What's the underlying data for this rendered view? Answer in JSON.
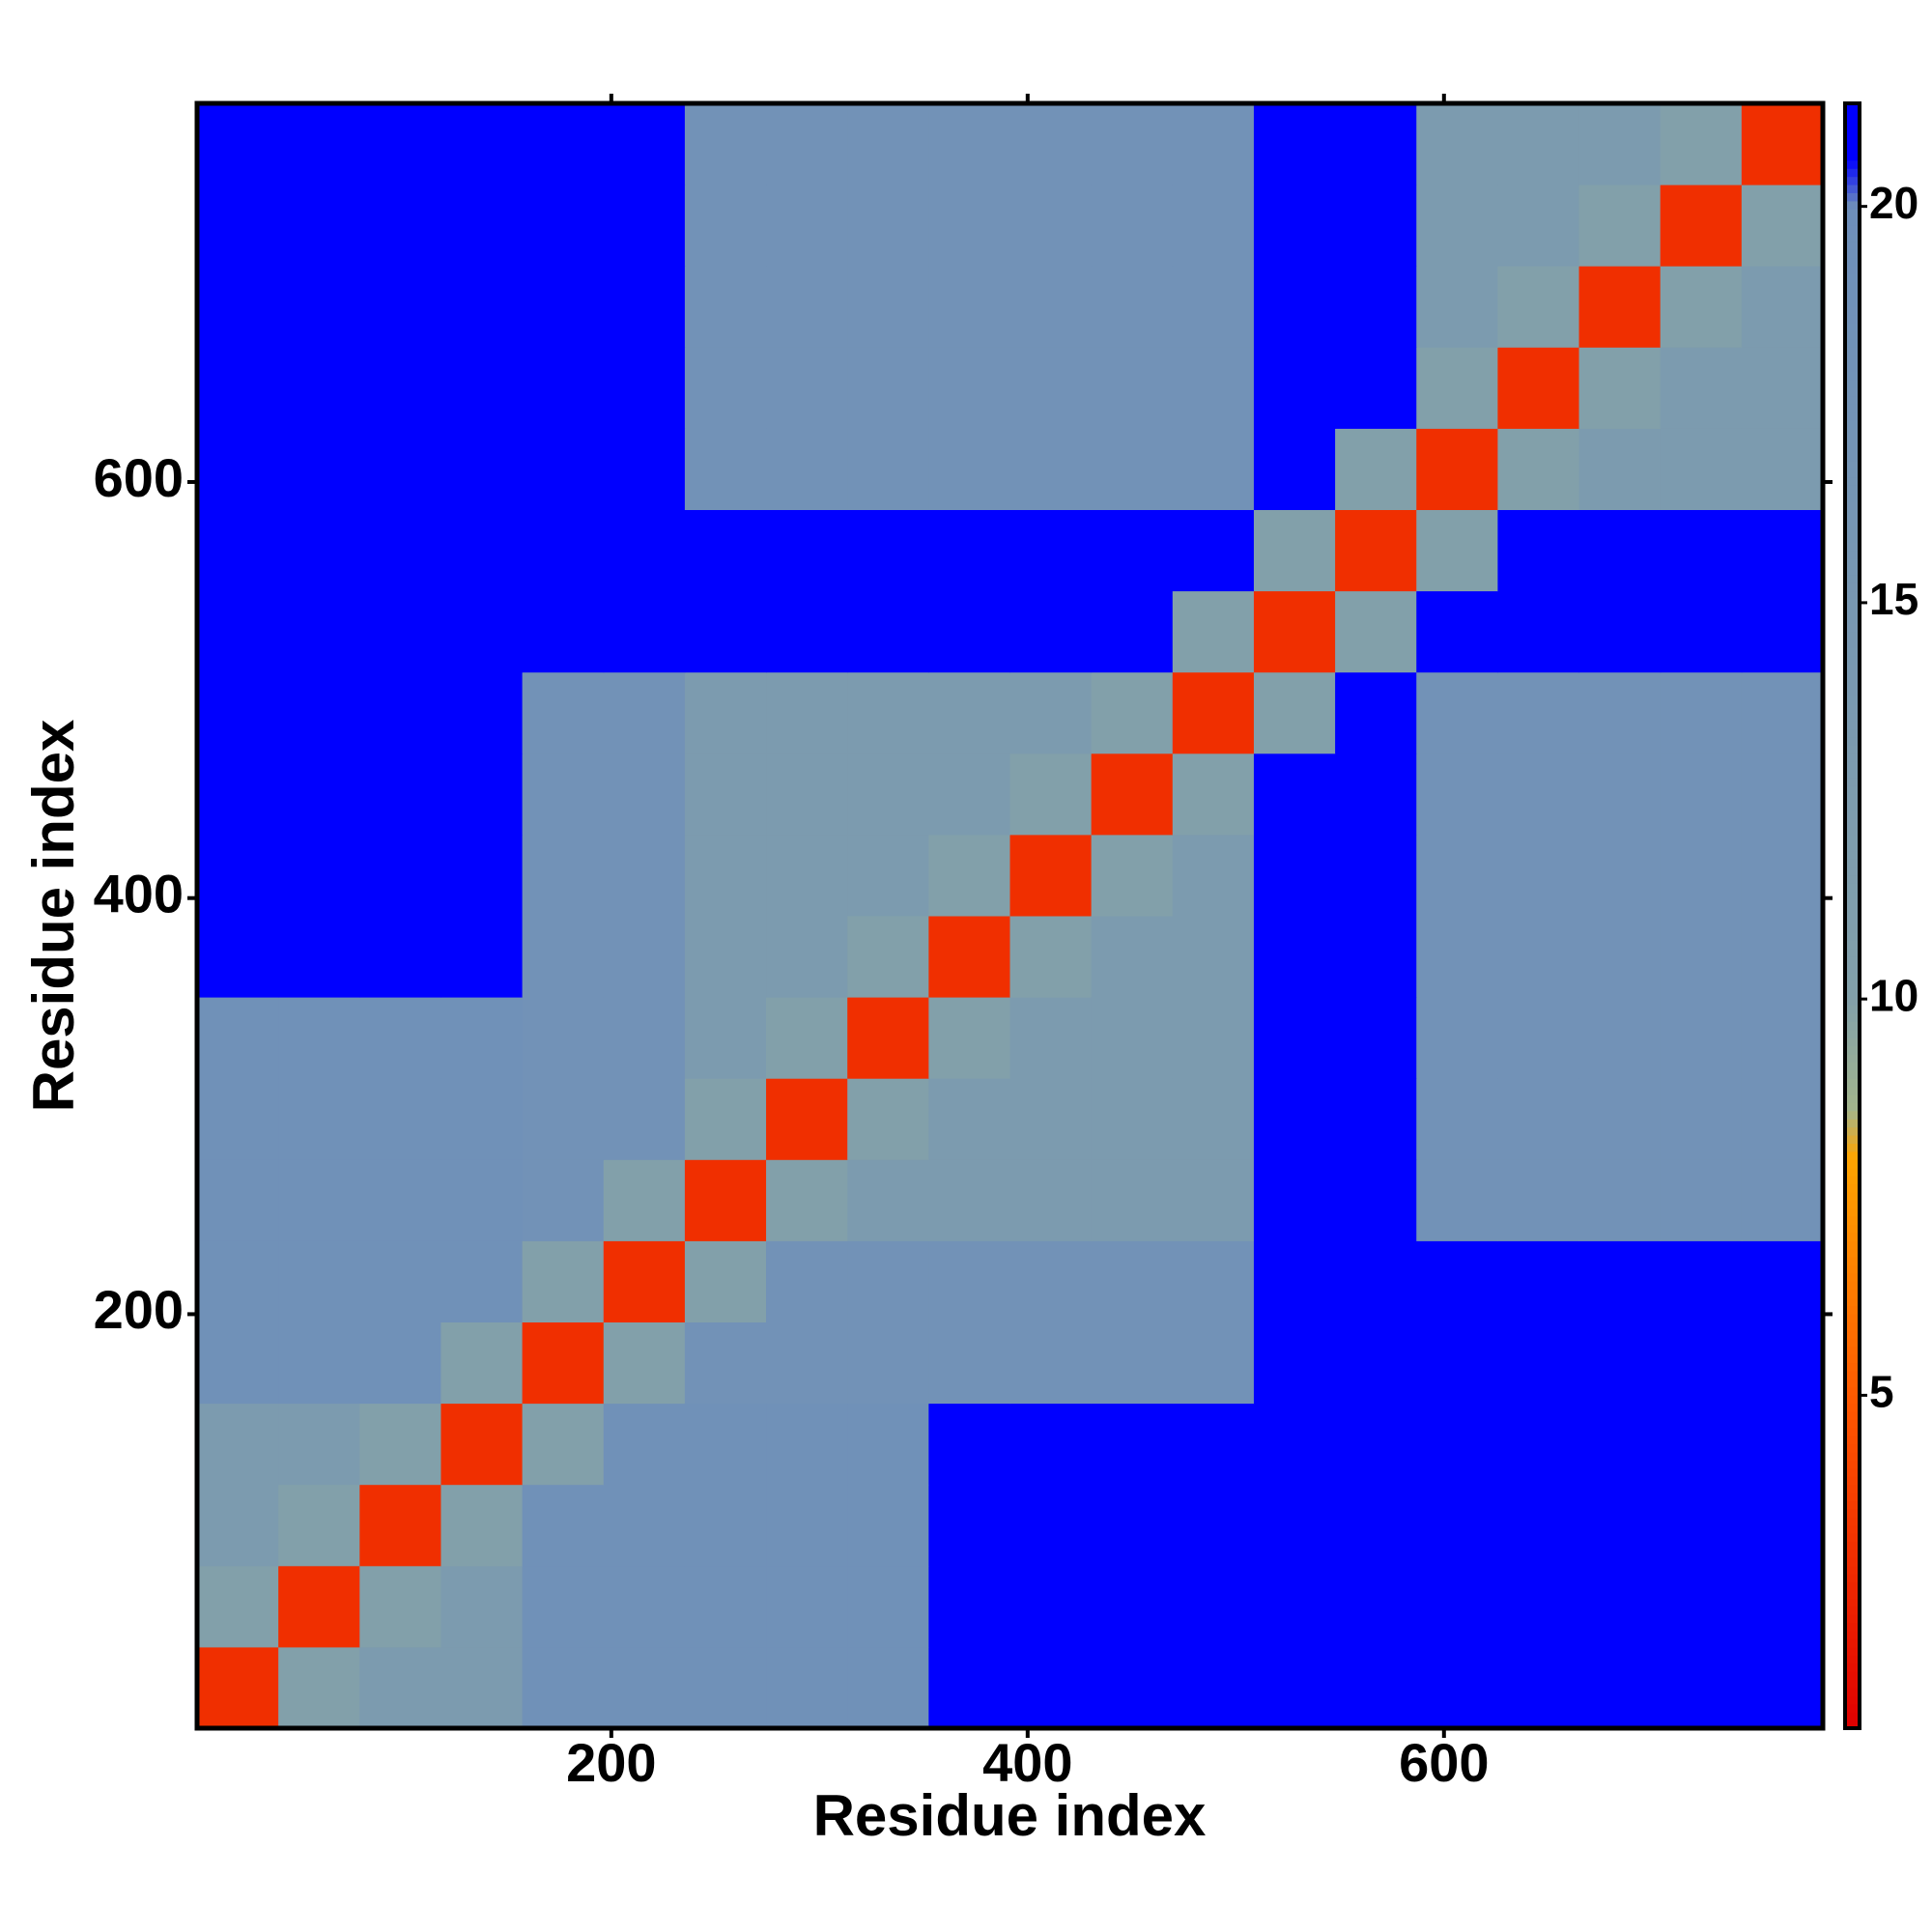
{
  "chart_data": {
    "type": "heatmap",
    "x_label": "Residue index",
    "y_label": "Residue index",
    "xlim": [
      1,
      782
    ],
    "ylim": [
      1,
      782
    ],
    "xticks": [
      200,
      400,
      600
    ],
    "yticks": [
      200,
      400,
      600
    ],
    "zlim": [
      0.8,
      21.3
    ],
    "zticks": [
      5,
      10,
      15,
      20
    ],
    "colorscale": [
      {
        "value": 0.8,
        "color": "#e00000"
      },
      {
        "value": 5,
        "color": "#ff5a00"
      },
      {
        "value": 8,
        "color": "#ffa500"
      },
      {
        "value": 8.6,
        "color": "#a3b58c"
      },
      {
        "value": 10,
        "color": "#82a0aa"
      },
      {
        "value": 20,
        "color": "#6e8fba"
      },
      {
        "value": 20.6,
        "color": "#0000ff"
      },
      {
        "value": 21.3,
        "color": "#0000ff"
      }
    ],
    "values": [
      [
        3,
        10,
        13,
        13,
        19,
        19,
        19,
        19,
        19,
        21,
        21,
        21,
        21,
        21,
        21,
        21,
        21,
        21,
        21,
        21
      ],
      [
        10,
        3,
        10,
        13,
        19,
        19,
        19,
        19,
        19,
        21,
        21,
        21,
        21,
        21,
        21,
        21,
        21,
        21,
        21,
        21
      ],
      [
        13,
        10,
        3,
        10,
        19,
        19,
        19,
        19,
        19,
        21,
        21,
        21,
        21,
        21,
        21,
        21,
        21,
        21,
        21,
        21
      ],
      [
        13,
        13,
        10,
        3,
        10,
        19,
        19,
        19,
        19,
        21,
        21,
        21,
        21,
        21,
        21,
        21,
        21,
        21,
        21,
        21
      ],
      [
        19,
        19,
        19,
        10,
        3,
        10,
        18,
        18,
        18,
        18,
        18,
        18,
        18,
        21,
        21,
        21,
        21,
        21,
        21,
        21
      ],
      [
        19,
        19,
        19,
        19,
        10,
        3,
        10,
        18,
        18,
        18,
        18,
        18,
        18,
        21,
        21,
        21,
        21,
        21,
        21,
        21
      ],
      [
        19,
        19,
        19,
        19,
        18,
        10,
        3,
        10,
        13,
        13,
        13,
        13,
        13,
        21,
        21,
        18,
        18,
        18,
        18,
        18
      ],
      [
        19,
        19,
        19,
        19,
        18,
        18,
        10,
        3,
        10,
        13,
        13,
        13,
        13,
        21,
        21,
        18,
        18,
        18,
        18,
        18
      ],
      [
        19,
        19,
        19,
        19,
        18,
        18,
        13,
        10,
        3,
        10,
        13,
        13,
        13,
        21,
        21,
        18,
        18,
        18,
        18,
        18
      ],
      [
        21,
        21,
        21,
        21,
        18,
        18,
        13,
        13,
        10,
        3,
        10,
        13,
        13,
        21,
        21,
        18,
        18,
        18,
        18,
        18
      ],
      [
        21,
        21,
        21,
        21,
        18,
        18,
        13,
        13,
        13,
        10,
        3,
        10,
        13,
        21,
        21,
        18,
        18,
        18,
        18,
        18
      ],
      [
        21,
        21,
        21,
        21,
        18,
        18,
        13,
        13,
        13,
        13,
        10,
        3,
        10,
        21,
        21,
        18,
        18,
        18,
        18,
        18
      ],
      [
        21,
        21,
        21,
        21,
        18,
        18,
        13,
        13,
        13,
        13,
        13,
        10,
        3,
        10,
        21,
        18,
        18,
        18,
        18,
        18
      ],
      [
        21,
        21,
        21,
        21,
        21,
        21,
        21,
        21,
        21,
        21,
        21,
        21,
        10,
        3,
        10,
        21,
        21,
        21,
        21,
        21
      ],
      [
        21,
        21,
        21,
        21,
        21,
        21,
        21,
        21,
        21,
        21,
        21,
        21,
        21,
        10,
        3,
        10,
        21,
        21,
        21,
        21
      ],
      [
        21,
        21,
        21,
        21,
        21,
        21,
        18,
        18,
        18,
        18,
        18,
        18,
        18,
        21,
        10,
        3,
        10,
        13,
        13,
        13
      ],
      [
        21,
        21,
        21,
        21,
        21,
        21,
        18,
        18,
        18,
        18,
        18,
        18,
        18,
        21,
        21,
        10,
        3,
        10,
        13,
        13
      ],
      [
        21,
        21,
        21,
        21,
        21,
        21,
        18,
        18,
        18,
        18,
        18,
        18,
        18,
        21,
        21,
        13,
        10,
        3,
        10,
        13
      ],
      [
        21,
        21,
        21,
        21,
        21,
        21,
        18,
        18,
        18,
        18,
        18,
        18,
        18,
        21,
        21,
        13,
        13,
        10,
        3,
        10
      ],
      [
        21,
        21,
        21,
        21,
        21,
        21,
        18,
        18,
        18,
        18,
        18,
        18,
        18,
        21,
        21,
        13,
        13,
        13,
        10,
        3
      ]
    ]
  }
}
